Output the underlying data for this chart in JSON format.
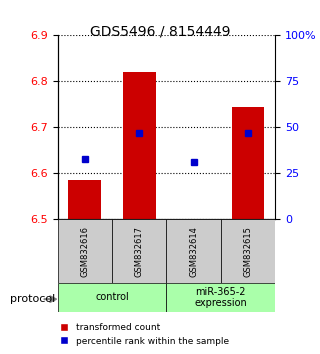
{
  "title": "GDS5496 / 8154449",
  "samples": [
    "GSM832616",
    "GSM832617",
    "GSM832614",
    "GSM832615"
  ],
  "groups": [
    {
      "label": "control",
      "samples": [
        "GSM832616",
        "GSM832617"
      ],
      "color": "#aaffaa"
    },
    {
      "label": "miR-365-2\nexpression",
      "samples": [
        "GSM832614",
        "GSM832615"
      ],
      "color": "#aaffaa"
    }
  ],
  "bar_base": 6.5,
  "bar_tops": [
    6.585,
    6.82,
    6.502,
    6.745
  ],
  "percentile_values": [
    0.33,
    0.47,
    0.31,
    0.47
  ],
  "ylim_left": [
    6.5,
    6.9
  ],
  "ylim_right": [
    0,
    100
  ],
  "yticks_left": [
    6.5,
    6.6,
    6.7,
    6.8,
    6.9
  ],
  "yticks_right": [
    0,
    25,
    50,
    75,
    100
  ],
  "ytick_labels_right": [
    "0",
    "25",
    "50",
    "75",
    "100%"
  ],
  "bar_color": "#cc0000",
  "dot_color": "#0000cc",
  "grid_color": "#000000",
  "bg_color": "#ffffff",
  "sample_bg": "#cccccc",
  "legend_red_label": "transformed count",
  "legend_blue_label": "percentile rank within the sample",
  "protocol_label": "protocol"
}
